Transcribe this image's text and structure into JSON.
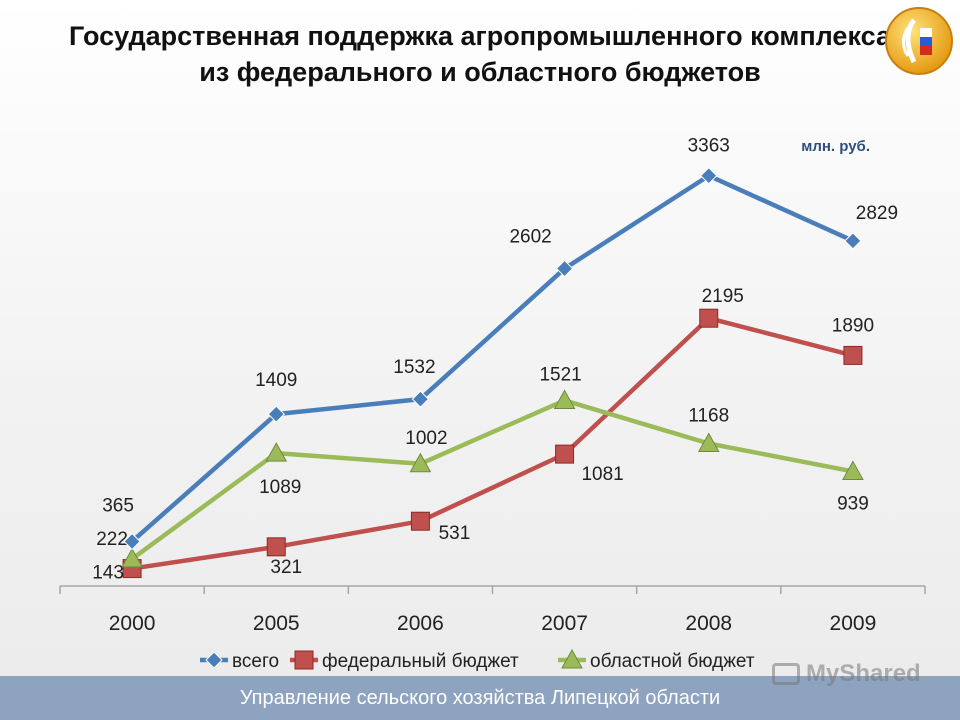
{
  "slide": {
    "title": "Государственная поддержка агропромышленного комплекса из федерального и областного бюджетов",
    "units": "млн. руб.",
    "footer": "Управление сельского хозяйства Липецкой области",
    "watermark": "MyShared",
    "logo_icon": "wheat-emblem-icon"
  },
  "chart_data": {
    "type": "line",
    "categories": [
      "2000",
      "2005",
      "2006",
      "2007",
      "2008",
      "2009"
    ],
    "series": [
      {
        "name": "всего",
        "values": [
          365,
          1409,
          1532,
          2602,
          3363,
          2829
        ],
        "color": "#4a7ebb",
        "marker": "diamond"
      },
      {
        "name": "федеральный бюджет",
        "values": [
          143,
          321,
          531,
          1081,
          2195,
          1890
        ],
        "color": "#c0504d",
        "marker": "square"
      },
      {
        "name": "областной бюджет",
        "values": [
          222,
          1089,
          1002,
          1521,
          1168,
          939
        ],
        "color": "#9bbb59",
        "marker": "triangle"
      }
    ],
    "ylim": [
      0,
      4000
    ],
    "grid": false,
    "legend_position": "bottom"
  }
}
